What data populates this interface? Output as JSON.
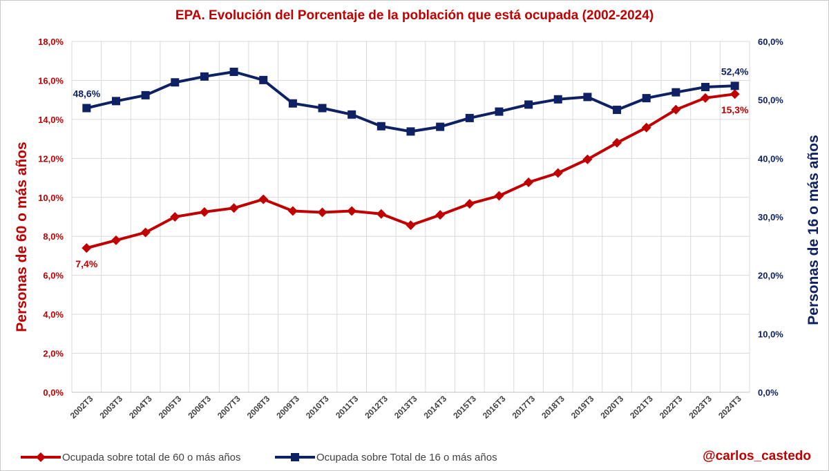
{
  "chart_data": {
    "type": "line",
    "title": "EPA. Evolución del Porcentaje de la población que está ocupada (2002-2024)",
    "categories": [
      "2002T3",
      "2003T3",
      "2004T3",
      "2005T3",
      "2006T3",
      "2007T3",
      "2008T3",
      "2009T3",
      "2010T3",
      "2011T3",
      "2012T3",
      "2013T3",
      "2014T3",
      "2015T3",
      "2016T3",
      "2017T3",
      "2018T3",
      "2019T3",
      "2020T3",
      "2021T3",
      "2022T3",
      "2023T3",
      "2024T3"
    ],
    "ylabel_left": "Personas de 60 o más años",
    "ylabel_right": "Personas de 16 o más años",
    "ylim_left": [
      0,
      18
    ],
    "ylim_right": [
      0,
      60
    ],
    "yticks_left": [
      "0,0%",
      "2,0%",
      "4,0%",
      "6,0%",
      "8,0%",
      "10,0%",
      "12,0%",
      "14,0%",
      "16,0%",
      "18,0%"
    ],
    "yticks_right": [
      "0,0%",
      "10,0%",
      "20,0%",
      "30,0%",
      "40,0%",
      "50,0%",
      "60,0%"
    ],
    "grid": true,
    "legend_position": "bottom-left",
    "series": [
      {
        "name": "Ocupada sobre total de 60 o más años",
        "axis": "left",
        "color": "#c00000",
        "marker": "diamond",
        "values": [
          7.4,
          7.8,
          8.2,
          9.0,
          9.25,
          9.45,
          9.9,
          9.3,
          9.23,
          9.3,
          9.15,
          8.57,
          9.1,
          9.67,
          10.08,
          10.77,
          11.25,
          11.95,
          12.8,
          13.58,
          14.5,
          15.1,
          15.3
        ]
      },
      {
        "name": "Ocupada sobre Total de 16 o más años",
        "axis": "right",
        "color": "#0d2163",
        "marker": "square",
        "values": [
          48.6,
          49.8,
          50.8,
          53.0,
          54.0,
          54.8,
          53.4,
          49.4,
          48.6,
          47.5,
          45.5,
          44.6,
          45.4,
          46.9,
          48.0,
          49.2,
          50.1,
          50.5,
          48.3,
          50.3,
          51.3,
          52.2,
          52.4
        ]
      }
    ],
    "annotations": [
      {
        "series": 0,
        "index": 0,
        "label": "7,4%",
        "placement": "below"
      },
      {
        "series": 0,
        "index": 22,
        "label": "15,3%",
        "placement": "below"
      },
      {
        "series": 1,
        "index": 0,
        "label": "48,6%",
        "placement": "above"
      },
      {
        "series": 1,
        "index": 22,
        "label": "52,4%",
        "placement": "above"
      }
    ]
  },
  "credit": "@carlos_castedo"
}
